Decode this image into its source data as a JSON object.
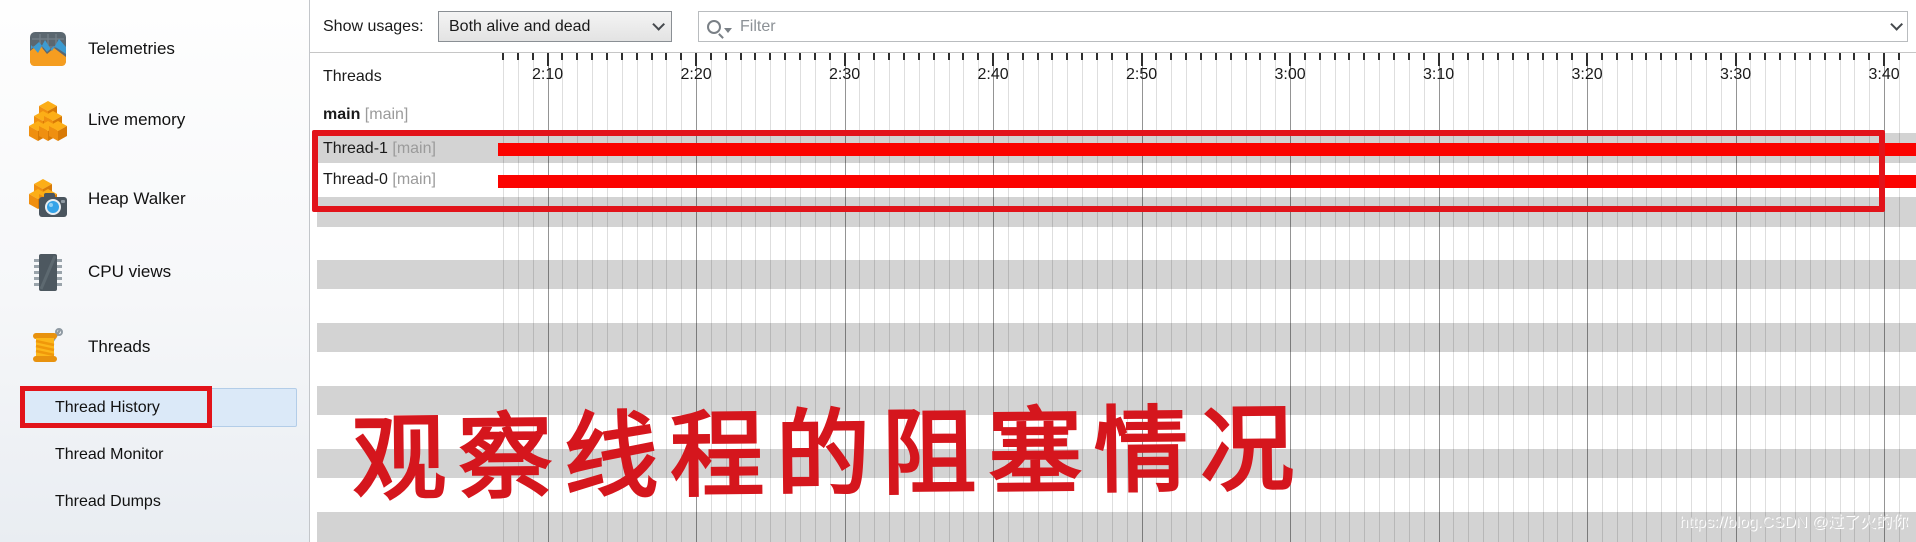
{
  "sidebar": {
    "items": [
      {
        "label": "Telemetries",
        "icon": "telemetries-icon"
      },
      {
        "label": "Live memory",
        "icon": "live-memory-icon"
      },
      {
        "label": "Heap Walker",
        "icon": "heap-walker-icon"
      },
      {
        "label": "CPU views",
        "icon": "cpu-views-icon"
      },
      {
        "label": "Threads",
        "icon": "threads-icon"
      }
    ],
    "sub_items": [
      {
        "label": "Thread History",
        "selected": true,
        "annotated": true
      },
      {
        "label": "Thread Monitor",
        "selected": false,
        "annotated": false
      },
      {
        "label": "Thread Dumps",
        "selected": false,
        "annotated": false
      }
    ]
  },
  "toolbar": {
    "show_usages_label": "Show usages:",
    "usages_value": "Both alive and dead",
    "filter_placeholder": "Filter"
  },
  "timeline": {
    "header_label": "Threads",
    "tick_labels": [
      "2:10",
      "2:20",
      "2:30",
      "2:40",
      "2:50",
      "3:00",
      "3:10",
      "3:20",
      "3:30",
      "3:40"
    ]
  },
  "threads": [
    {
      "name": "main",
      "group": "[main]",
      "status_bar": "none"
    },
    {
      "name": "Thread-1",
      "group": "[main]",
      "status_bar": "blocked"
    },
    {
      "name": "Thread-0",
      "group": "[main]",
      "status_bar": "blocked"
    }
  ],
  "annotation": {
    "text": "观察线程的阻塞情况"
  },
  "watermark": {
    "text": "https://blog.CSDN @过了火的你"
  },
  "colors": {
    "red_accent": "#e2131a",
    "blocked_red": "#fb0300",
    "row_gray": "#d3d3d3",
    "select_blue": "#dbe9f8",
    "caption_red": "#d5161d"
  }
}
